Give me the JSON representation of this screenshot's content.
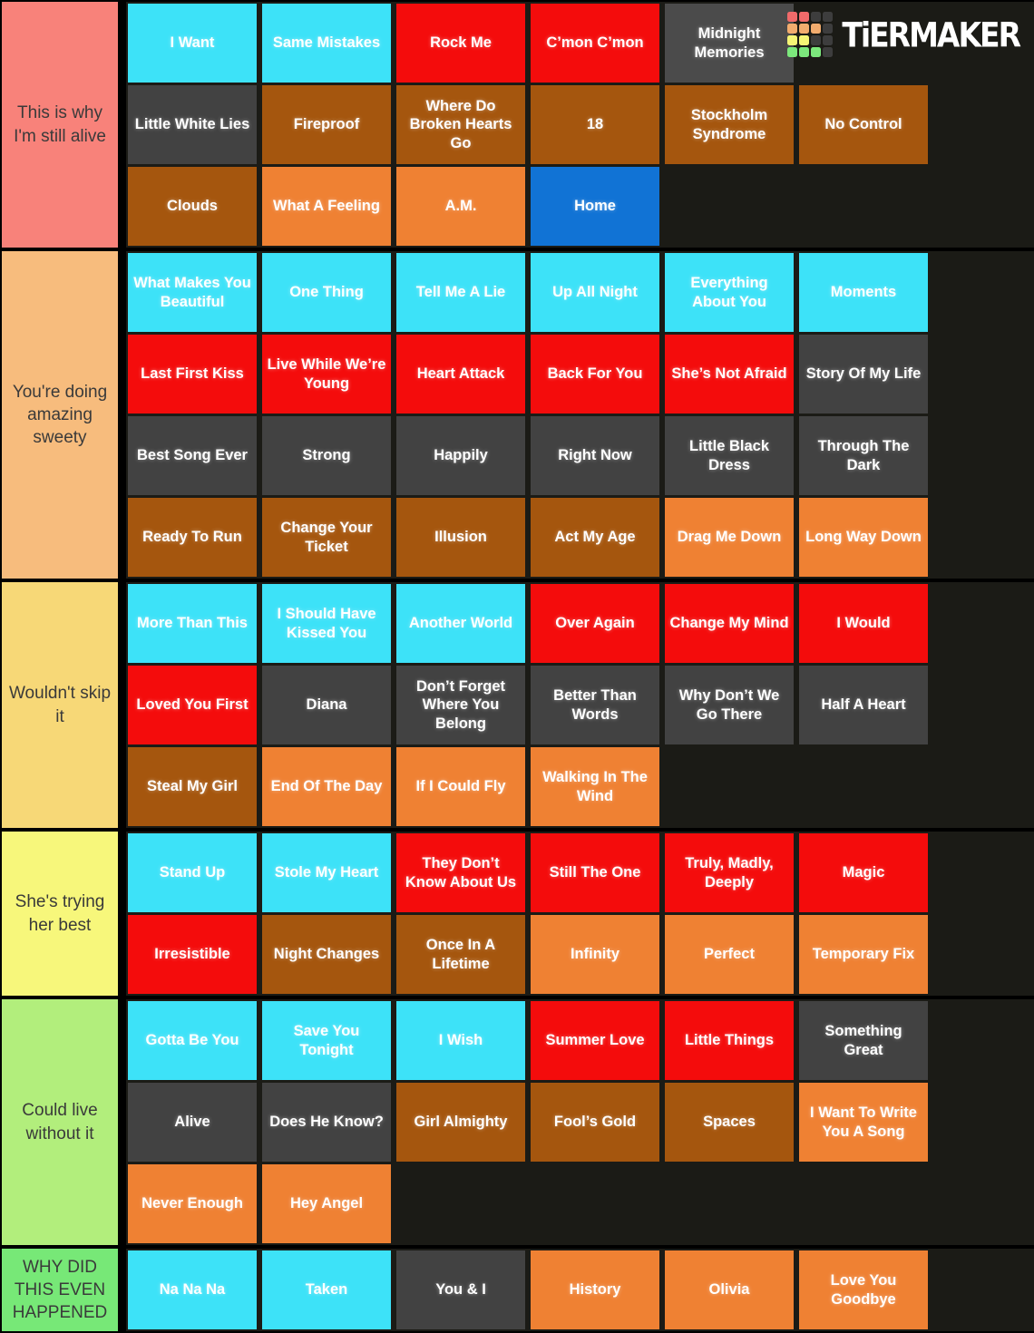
{
  "logo": {
    "text": "TiERMAKER",
    "grid": [
      [
        "#f06a6a",
        "#f06a6a",
        "#3d3d3d",
        "#3d3d3d"
      ],
      [
        "#f2ac6e",
        "#f2ac6e",
        "#f2ac6e",
        "#3d3d3d"
      ],
      [
        "#f5f575",
        "#f5f575",
        "#3d3d3d",
        "#3d3d3d"
      ],
      [
        "#7ce87c",
        "#7ce87c",
        "#7ce87c",
        "#3d3d3d"
      ]
    ]
  },
  "palette": {
    "cyan": "#3de2f8",
    "red": "#f40c0c",
    "gray": "#424242",
    "grayLight": "#4b4b4b",
    "brown": "#a5560e",
    "orange": "#ef8133",
    "blue": "#1173d5",
    "spacer": "transparent"
  },
  "background_color": "#1b1b16",
  "tiers": [
    {
      "label": "This is why I'm still alive",
      "color": "#f8827a",
      "tiles": [
        {
          "label": "I Want",
          "album": "cyan"
        },
        {
          "label": "Same Mistakes",
          "album": "cyan"
        },
        {
          "label": "Rock Me",
          "album": "red"
        },
        {
          "label": "C’mon C’mon",
          "album": "red"
        },
        {
          "label": "Midnight Memories",
          "album": "grayLight"
        },
        {
          "label": "",
          "album": "spacer"
        },
        {
          "label": "Little White Lies",
          "album": "gray"
        },
        {
          "label": "Fireproof",
          "album": "brown"
        },
        {
          "label": "Where Do Broken Hearts Go",
          "album": "brown"
        },
        {
          "label": "18",
          "album": "brown"
        },
        {
          "label": "Stockholm Syndrome",
          "album": "brown"
        },
        {
          "label": "No Control",
          "album": "brown"
        },
        {
          "label": "Clouds",
          "album": "brown"
        },
        {
          "label": "What A Feeling",
          "album": "orange"
        },
        {
          "label": "A.M.",
          "album": "orange"
        },
        {
          "label": "Home",
          "album": "blue"
        }
      ]
    },
    {
      "label": "You're doing amazing sweety",
      "color": "#f7bc7d",
      "tiles": [
        {
          "label": "What Makes You Beautiful",
          "album": "cyan"
        },
        {
          "label": "One Thing",
          "album": "cyan"
        },
        {
          "label": "Tell Me A Lie",
          "album": "cyan"
        },
        {
          "label": "Up All Night",
          "album": "cyan"
        },
        {
          "label": "Everything About You",
          "album": "cyan"
        },
        {
          "label": "Moments",
          "album": "cyan"
        },
        {
          "label": "Last First Kiss",
          "album": "red"
        },
        {
          "label": "Live While We’re Young",
          "album": "red"
        },
        {
          "label": "Heart Attack",
          "album": "red"
        },
        {
          "label": "Back For You",
          "album": "red"
        },
        {
          "label": "She’s Not Afraid",
          "album": "red"
        },
        {
          "label": "Story Of My Life",
          "album": "gray"
        },
        {
          "label": "Best Song Ever",
          "album": "gray"
        },
        {
          "label": "Strong",
          "album": "gray"
        },
        {
          "label": "Happily",
          "album": "gray"
        },
        {
          "label": "Right Now",
          "album": "gray"
        },
        {
          "label": "Little Black Dress",
          "album": "gray"
        },
        {
          "label": "Through The Dark",
          "album": "gray"
        },
        {
          "label": "Ready To Run",
          "album": "brown"
        },
        {
          "label": "Change Your Ticket",
          "album": "brown"
        },
        {
          "label": "Illusion",
          "album": "brown"
        },
        {
          "label": "Act My Age",
          "album": "brown"
        },
        {
          "label": "Drag Me Down",
          "album": "orange"
        },
        {
          "label": "Long Way Down",
          "album": "orange"
        }
      ]
    },
    {
      "label": "Wouldn't skip it",
      "color": "#f7d877",
      "tiles": [
        {
          "label": "More Than This",
          "album": "cyan"
        },
        {
          "label": "I Should Have Kissed You",
          "album": "cyan"
        },
        {
          "label": "Another World",
          "album": "cyan"
        },
        {
          "label": "Over Again",
          "album": "red"
        },
        {
          "label": "Change My Mind",
          "album": "red"
        },
        {
          "label": "I Would",
          "album": "red"
        },
        {
          "label": "Loved You First",
          "album": "red"
        },
        {
          "label": "Diana",
          "album": "gray"
        },
        {
          "label": "Don’t Forget Where You Belong",
          "album": "gray"
        },
        {
          "label": "Better Than Words",
          "album": "gray"
        },
        {
          "label": "Why Don’t We Go There",
          "album": "gray"
        },
        {
          "label": "Half A Heart",
          "album": "gray"
        },
        {
          "label": "Steal My Girl",
          "album": "brown"
        },
        {
          "label": "End Of The Day",
          "album": "orange"
        },
        {
          "label": "If I Could Fly",
          "album": "orange"
        },
        {
          "label": "Walking In The Wind",
          "album": "orange"
        }
      ]
    },
    {
      "label": "She's trying her best",
      "color": "#f7f77b",
      "tiles": [
        {
          "label": "Stand Up",
          "album": "cyan"
        },
        {
          "label": "Stole My Heart",
          "album": "cyan"
        },
        {
          "label": "They Don’t Know About Us",
          "album": "red"
        },
        {
          "label": "Still The One",
          "album": "red"
        },
        {
          "label": "Truly, Madly, Deeply",
          "album": "red"
        },
        {
          "label": "Magic",
          "album": "red"
        },
        {
          "label": "Irresistible",
          "album": "red"
        },
        {
          "label": "Night Changes",
          "album": "brown"
        },
        {
          "label": "Once In A Lifetime",
          "album": "brown"
        },
        {
          "label": "Infinity",
          "album": "orange"
        },
        {
          "label": "Perfect",
          "album": "orange"
        },
        {
          "label": "Temporary Fix",
          "album": "orange"
        }
      ]
    },
    {
      "label": "Could live without it",
      "color": "#b2ee7c",
      "tiles": [
        {
          "label": "Gotta Be You",
          "album": "cyan"
        },
        {
          "label": "Save You Tonight",
          "album": "cyan"
        },
        {
          "label": "I Wish",
          "album": "cyan"
        },
        {
          "label": "Summer Love",
          "album": "red"
        },
        {
          "label": "Little Things",
          "album": "red"
        },
        {
          "label": "Something Great",
          "album": "gray"
        },
        {
          "label": "Alive",
          "album": "gray"
        },
        {
          "label": "Does He Know?",
          "album": "gray"
        },
        {
          "label": "Girl Almighty",
          "album": "brown"
        },
        {
          "label": "Fool’s Gold",
          "album": "brown"
        },
        {
          "label": "Spaces",
          "album": "brown"
        },
        {
          "label": "I Want To Write You A Song",
          "album": "orange"
        },
        {
          "label": "Never Enough",
          "album": "orange"
        },
        {
          "label": "Hey Angel",
          "album": "orange"
        }
      ]
    },
    {
      "label": "WHY DID THIS EVEN HAPPENED",
      "color": "#77e877",
      "tiles": [
        {
          "label": "Na Na Na",
          "album": "cyan"
        },
        {
          "label": "Taken",
          "album": "cyan"
        },
        {
          "label": "You & I",
          "album": "gray"
        },
        {
          "label": "History",
          "album": "orange"
        },
        {
          "label": "Olivia",
          "album": "orange"
        },
        {
          "label": "Love You Goodbye",
          "album": "orange"
        }
      ]
    }
  ]
}
